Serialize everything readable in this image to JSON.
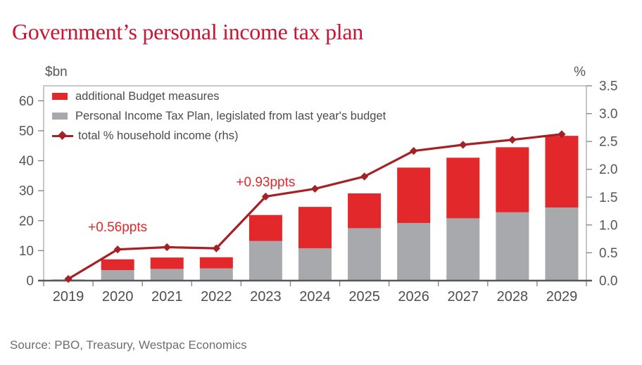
{
  "title": "Government’s personal income tax plan",
  "source": "Source: PBO, Treasury, Westpac Economics",
  "colors": {
    "title_red": "#cb1431",
    "bar_red": "#e2282b",
    "bar_gray": "#a7a9ac",
    "line_dark_red": "#a42125",
    "axis_text": "#55565a",
    "legend_text": "#4a4b4d",
    "source_text": "#6d6e71",
    "plot_border": "#a7a9ac",
    "axis_line": "#58595b"
  },
  "chart_data": {
    "type": "combo_stacked_bar_line",
    "title": "Government’s personal income tax plan",
    "categories": [
      "2019",
      "2020",
      "2021",
      "2022",
      "2023",
      "2024",
      "2025",
      "2026",
      "2027",
      "2028",
      "2029"
    ],
    "series": [
      {
        "name": "additional Budget measures",
        "type": "bar",
        "stack_position": "top",
        "color": "#e2282b",
        "values": [
          0,
          3.6,
          3.8,
          3.7,
          8.7,
          13.8,
          11.6,
          18.5,
          20.2,
          21.7,
          23.9
        ]
      },
      {
        "name": "Personal Income Tax Plan, legislated from last year's budget",
        "type": "bar",
        "stack_position": "bottom",
        "color": "#a7a9ac",
        "values": [
          0.4,
          3.5,
          3.9,
          4.1,
          13.2,
          10.8,
          17.5,
          19.2,
          20.8,
          22.8,
          24.4
        ]
      },
      {
        "name": "total % household income (rhs)",
        "type": "line",
        "axis": "right",
        "color": "#a42125",
        "marker": "diamond",
        "values": [
          0.03,
          0.56,
          0.6,
          0.58,
          1.51,
          1.65,
          1.87,
          2.33,
          2.44,
          2.53,
          2.63
        ]
      }
    ],
    "left_axis": {
      "label": "$bn",
      "min": 0,
      "max": 65,
      "ticks": [
        "0",
        "10",
        "20",
        "30",
        "40",
        "50",
        "60"
      ]
    },
    "right_axis": {
      "label": "%",
      "min": 0,
      "max": 3.5,
      "ticks": [
        "0.0",
        "0.5",
        "1.0",
        "1.5",
        "2.0",
        "2.5",
        "3.0",
        "3.5"
      ]
    },
    "annotations": [
      {
        "text": "+0.56ppts",
        "year_index": 1,
        "value": 0.95
      },
      {
        "text": "+0.93ppts",
        "year_index": 4,
        "value": 1.76
      }
    ],
    "grid": false,
    "legend_position": "top-left-inside"
  }
}
